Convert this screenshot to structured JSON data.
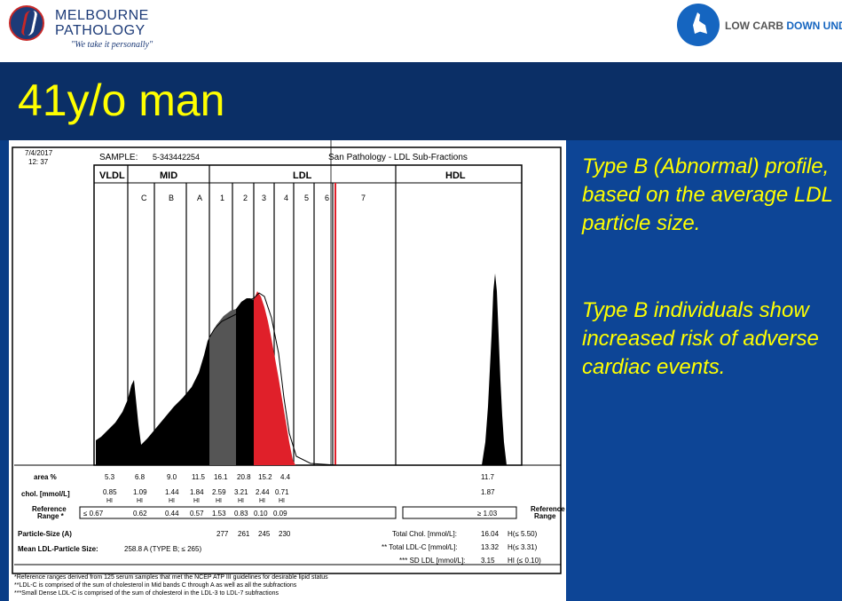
{
  "header": {
    "brand_left": {
      "name_line1": "MELBOURNE",
      "name_line2": "PATHOLOGY",
      "tagline": "\"We take it personally\""
    },
    "brand_right": {
      "part1": "LOW CARB ",
      "part2": "DOWN UNDER"
    }
  },
  "slide": {
    "title": "41y/o man",
    "paragraph1": "Type B (Abnormal) profile, based on the average LDL particle size.",
    "paragraph2": "Type B individuals show increased risk of adverse cardiac events."
  },
  "report": {
    "date": "7/4/2017",
    "time": "12: 37",
    "sample_label": "SAMPLE:",
    "sample_id": "5-343442254",
    "lab_title": "San Pathology - LDL Sub-Fractions",
    "region_labels": [
      "VLDL",
      "MID",
      "LDL",
      "HDL"
    ],
    "band_labels": [
      "C",
      "B",
      "A",
      "1",
      "2",
      "3",
      "4",
      "5",
      "6",
      "7"
    ],
    "row_labels": {
      "area": "area %",
      "chol": "chol. [mmol/L]",
      "ref1": "Reference",
      "ref2": "Range *",
      "size": "Particle-Size (A)",
      "mean": "Mean LDL-Particle Size:",
      "ref_right1": "Reference",
      "ref_right2": "Range"
    },
    "area_values": [
      "5.3",
      "6.8",
      "9.0",
      "11.5",
      "16.1",
      "20.8",
      "15.2",
      "4.4",
      "11.7"
    ],
    "chol_values": [
      "0.85",
      "1.09",
      "1.44",
      "1.84",
      "2.59",
      "3.21",
      "2.44",
      "0.71",
      "1.87"
    ],
    "hi_flag": "HI",
    "ref_values": [
      "≤ 0.67",
      "0.62",
      "0.44",
      "0.57",
      "1.53",
      "0.83",
      "0.10",
      "0.09",
      "≥ 1.03"
    ],
    "particle_sizes": [
      "277",
      "261",
      "245",
      "230"
    ],
    "mean_size": "258.8 A  (TYPE B; ≤ 265)",
    "totals": [
      {
        "label": "Total Chol. [mmol/L]:",
        "value": "16.04",
        "flag": "H(≤ 5.50)"
      },
      {
        "label": "** Total LDL-C [mmol/L]:",
        "value": "13.32",
        "flag": "H(≤ 3.31)"
      },
      {
        "label": "*** SD LDL [mmol/L]:",
        "value": "3.15",
        "flag": "HI (≤ 0.10)"
      }
    ],
    "footnotes": [
      "*Reference ranges derived from 125 serum samples that met the NCEP ATP III guidelines for desirable lipid status",
      "**LDL-C is comprised of the sum of cholesterol in Mid bands C through A as well as all the subfractions",
      "***Small Dense LDL-C is comprised of the sum of cholesterol in the LDL-3 to LDL-7 subfractions"
    ]
  },
  "colors": {
    "title": "#ffff00",
    "body_text": "#ffff00",
    "background": "#0a3d86",
    "band": "#0b2f66",
    "sd_ldl_fill": "#e0202a"
  }
}
